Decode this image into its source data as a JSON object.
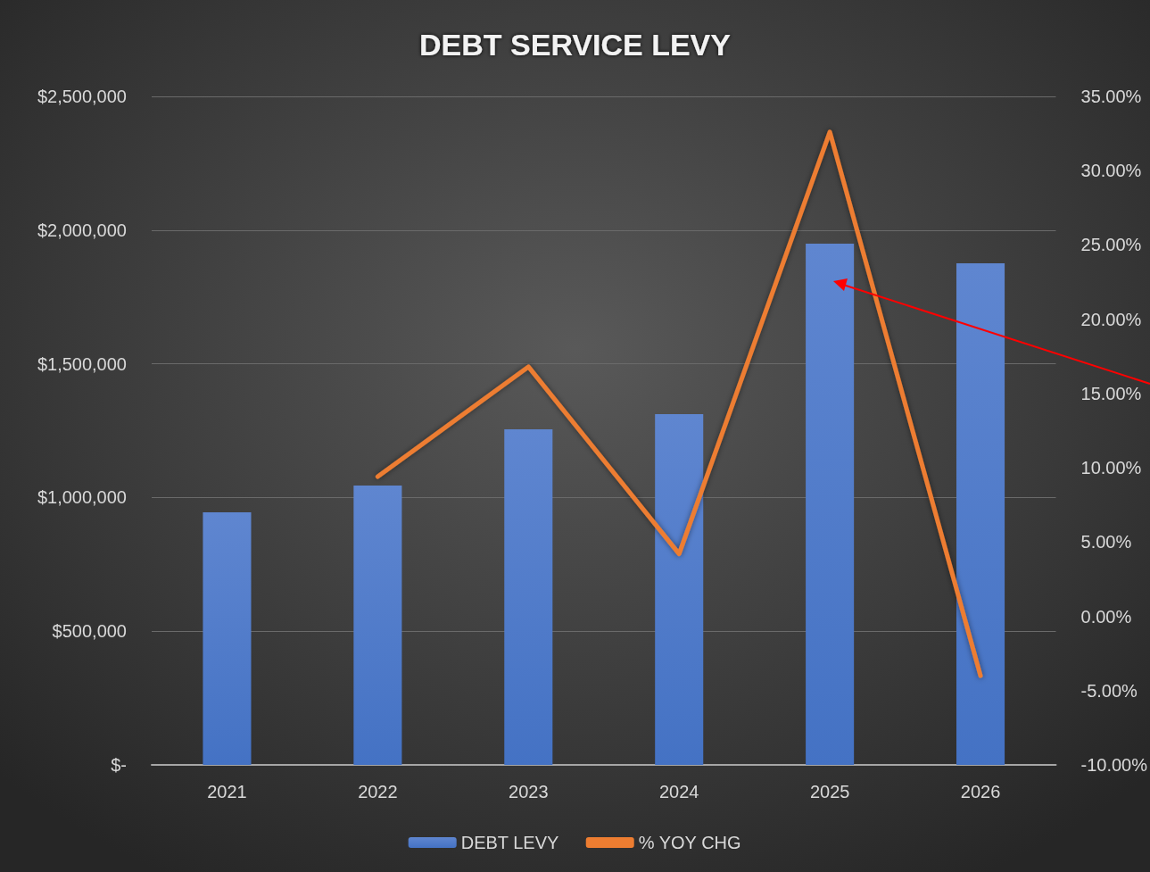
{
  "chart_data": {
    "type": "bar",
    "title": "DEBT SERVICE LEVY",
    "categories": [
      "2021",
      "2022",
      "2023",
      "2024",
      "2025",
      "2026"
    ],
    "series": [
      {
        "name": "DEBT LEVY",
        "color": "#4472c4",
        "values": [
          945000,
          1045000,
          1255000,
          1312000,
          1949000,
          1876000
        ]
      },
      {
        "name": "% YOY CHG",
        "type": "line",
        "axis": "y2",
        "color": "#ed7d31",
        "values": [
          null,
          9.4,
          16.8,
          4.2,
          32.6,
          -4.0
        ]
      }
    ],
    "ylim": [
      0,
      2500000
    ],
    "yticks": [
      {
        "value": 0,
        "label": "$-"
      },
      {
        "value": 500000,
        "label": "$500,000"
      },
      {
        "value": 1000000,
        "label": "$1,000,000"
      },
      {
        "value": 1500000,
        "label": "$1,500,000"
      },
      {
        "value": 2000000,
        "label": "$2,000,000"
      },
      {
        "value": 2500000,
        "label": "$2,500,000"
      }
    ],
    "y2lim": [
      -10,
      35
    ],
    "y2ticks": [
      {
        "value": -10,
        "label": "-10.00%"
      },
      {
        "value": -5,
        "label": "-5.00%"
      },
      {
        "value": 0,
        "label": "0.00%"
      },
      {
        "value": 5,
        "label": "5.00%"
      },
      {
        "value": 10,
        "label": "10.00%"
      },
      {
        "value": 15,
        "label": "15.00%"
      },
      {
        "value": 20,
        "label": "20.00%"
      },
      {
        "value": 25,
        "label": "25.00%"
      },
      {
        "value": 30,
        "label": "30.00%"
      },
      {
        "value": 35,
        "label": "35.00%"
      }
    ],
    "grid": "y",
    "legend": "bottom",
    "marker": "none",
    "line_style": "solid"
  }
}
